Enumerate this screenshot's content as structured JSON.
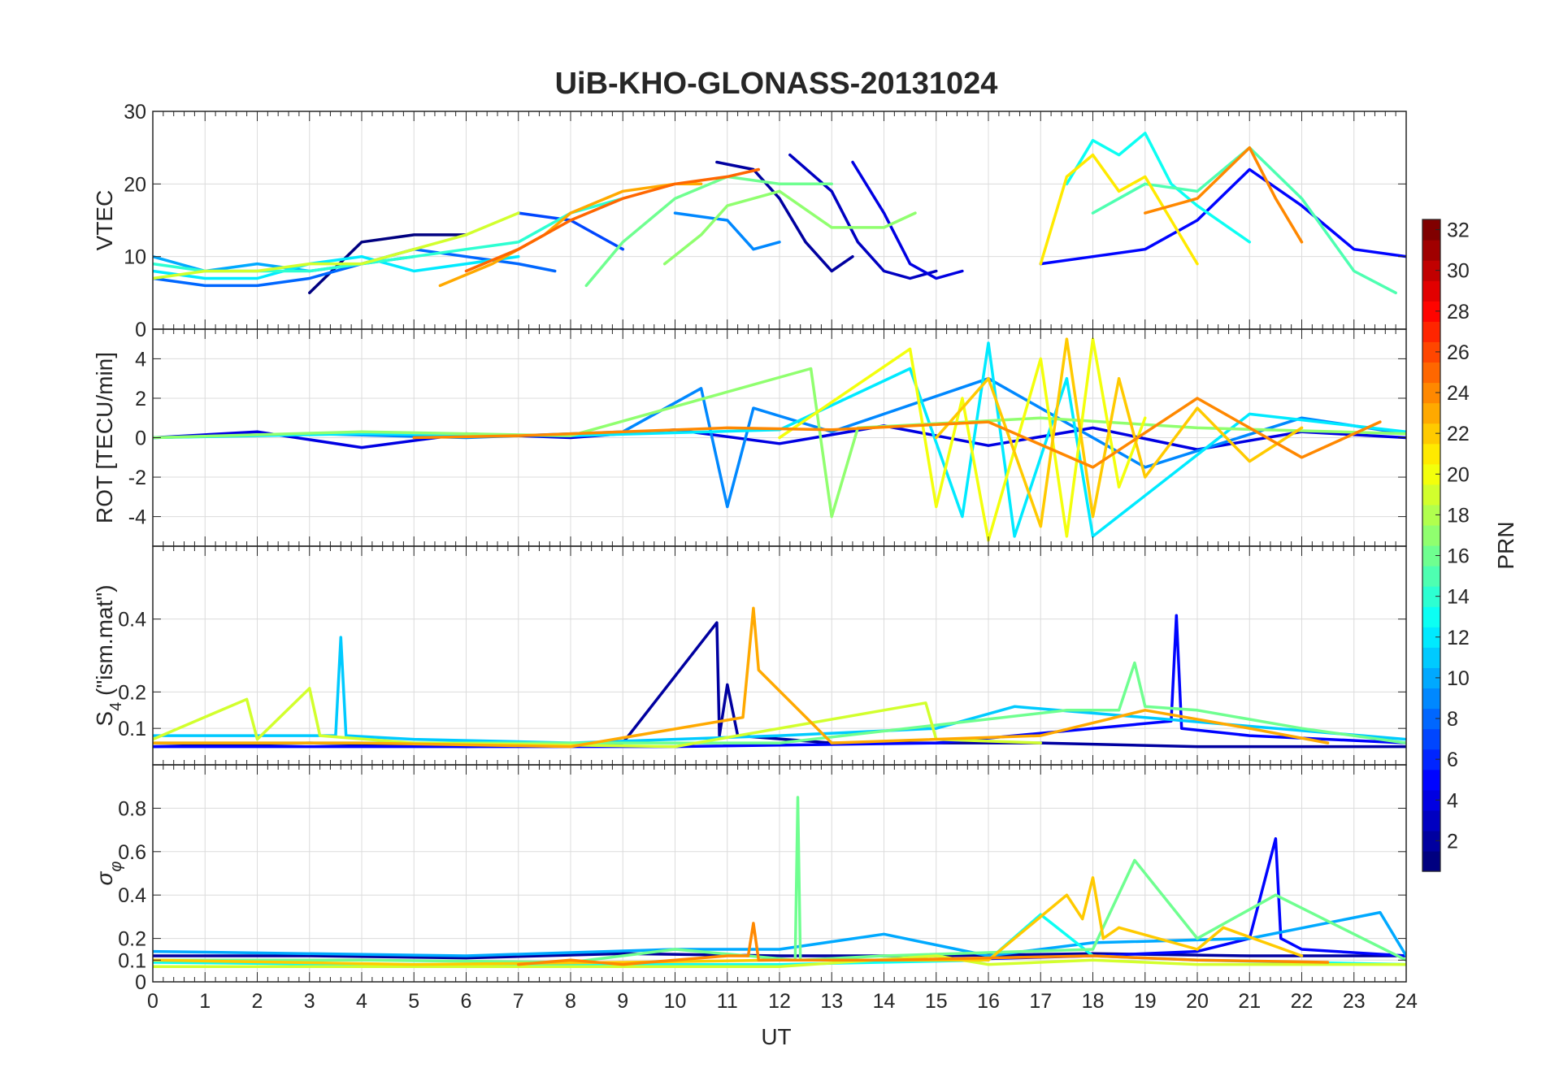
{
  "figure": {
    "title": "UiB-KHO-GLONASS-20131024",
    "xlabel": "UT"
  },
  "chart_data": [
    {
      "type": "line",
      "panel": "vtec",
      "title": "UiB-KHO-GLONASS-20131024",
      "ylabel": "VTEC",
      "ylim": [
        0,
        30
      ],
      "yticks": [
        0,
        10,
        20,
        30
      ],
      "xlim": [
        0,
        24
      ],
      "grid": true,
      "series": [
        {
          "prn": 1,
          "x": [
            3.0,
            4.0,
            5.0,
            6.0
          ],
          "y": [
            5,
            12,
            13,
            13
          ]
        },
        {
          "prn": 2,
          "x": [
            10.8,
            11.5,
            12.0,
            12.5,
            13.0,
            13.4
          ],
          "y": [
            23,
            22,
            18,
            12,
            8,
            10
          ]
        },
        {
          "prn": 3,
          "x": [
            12.2,
            13.0,
            13.5,
            14.0,
            14.5,
            15.0
          ],
          "y": [
            24,
            19,
            12,
            8,
            7,
            8
          ]
        },
        {
          "prn": 4,
          "x": [
            13.4,
            14.0,
            14.5,
            15.0,
            15.5
          ],
          "y": [
            23,
            16,
            9,
            7,
            8
          ]
        },
        {
          "prn": 5,
          "x": [
            17.0,
            18.0,
            19.0,
            20.0,
            21.0,
            22.0,
            23.0,
            24.0
          ],
          "y": [
            9,
            10,
            11,
            15,
            22,
            17,
            11,
            10
          ]
        },
        {
          "prn": 7,
          "x": [
            7.0,
            8.0,
            8.5,
            9.0
          ],
          "y": [
            16,
            15,
            13,
            11
          ]
        },
        {
          "prn": 8,
          "x": [
            0.0,
            1.0,
            2.0,
            3.0,
            4.0,
            5.0,
            6.0,
            7.0,
            7.7
          ],
          "y": [
            7,
            6,
            6,
            7,
            9,
            11,
            10,
            9,
            8
          ]
        },
        {
          "prn": 9,
          "x": [
            10.0,
            11.0,
            11.5,
            12.0
          ],
          "y": [
            16,
            15,
            11,
            12
          ]
        },
        {
          "prn": 10,
          "x": [
            0.0,
            1.0,
            2.0,
            3.0,
            4.0,
            5.0
          ],
          "y": [
            10,
            8,
            9,
            8,
            9,
            10
          ]
        },
        {
          "prn": 12,
          "x": [
            0.0,
            1.0,
            2.0,
            3.0,
            4.0,
            5.0,
            6.0,
            7.0
          ],
          "y": [
            8,
            7,
            7,
            9,
            10,
            8,
            9,
            10
          ]
        },
        {
          "prn": 13,
          "x": [
            17.5,
            18.0,
            18.5,
            19.0,
            19.5,
            20.0,
            21.0
          ],
          "y": [
            20,
            26,
            24,
            27,
            20,
            17,
            12
          ]
        },
        {
          "prn": 14,
          "x": [
            0.0,
            1.0,
            2.0,
            3.0,
            4.0,
            5.0,
            6.0,
            7.0,
            8.0,
            9.0
          ],
          "y": [
            9,
            8,
            8,
            8,
            9,
            10,
            11,
            12,
            16,
            18
          ]
        },
        {
          "prn": 15,
          "x": [
            18.0,
            19.0,
            20.0,
            21.0,
            22.0,
            23.0,
            23.8
          ],
          "y": [
            16,
            20,
            19,
            25,
            18,
            8,
            5
          ]
        },
        {
          "prn": 16,
          "x": [
            8.3,
            9.0,
            10.0,
            11.0,
            12.0,
            13.0
          ],
          "y": [
            6,
            12,
            18,
            21,
            20,
            20
          ]
        },
        {
          "prn": 17,
          "x": [
            9.8,
            10.5,
            11.0,
            12.0,
            13.0,
            14.0,
            14.6
          ],
          "y": [
            9,
            13,
            17,
            19,
            14,
            14,
            16
          ]
        },
        {
          "prn": 19,
          "x": [
            0.0,
            1.0,
            2.0,
            3.0,
            4.0,
            5.0,
            6.0,
            7.0
          ],
          "y": [
            7,
            8,
            8,
            9,
            9,
            11,
            13,
            16
          ]
        },
        {
          "prn": 21,
          "x": [
            17.0,
            17.5,
            18.0,
            18.5,
            19.0,
            19.5,
            20.0
          ],
          "y": [
            9,
            21,
            24,
            19,
            21,
            15,
            9
          ]
        },
        {
          "prn": 23,
          "x": [
            5.5,
            6.5,
            7.5,
            8.0,
            9.0,
            10.0,
            10.5
          ],
          "y": [
            6,
            9,
            13,
            16,
            19,
            20,
            20
          ]
        },
        {
          "prn": 24,
          "x": [
            19.0,
            20.0,
            21.0,
            21.5,
            22.0
          ],
          "y": [
            16,
            18,
            25,
            18,
            12
          ]
        },
        {
          "prn": 25,
          "x": [
            6.0,
            7.0,
            8.0,
            9.0,
            10.0,
            11.0,
            11.6
          ],
          "y": [
            8,
            11,
            15,
            18,
            20,
            21,
            22
          ]
        }
      ]
    },
    {
      "type": "line",
      "panel": "rot",
      "ylabel": "ROT [TECU/min]",
      "ylim": [
        -5.5,
        5.5
      ],
      "yticks": [
        -4,
        -2,
        0,
        2,
        4
      ],
      "xlim": [
        0,
        24
      ],
      "grid": true,
      "series": [
        {
          "prn": 4,
          "x": [
            0,
            2,
            4,
            6,
            8,
            10,
            12,
            14,
            16,
            18,
            20,
            22,
            24
          ],
          "y": [
            0,
            0.3,
            -0.5,
            0.2,
            0,
            0.4,
            -0.3,
            0.6,
            -0.4,
            0.5,
            -0.6,
            0.3,
            0
          ]
        },
        {
          "prn": 9,
          "x": [
            0,
            3,
            6,
            9,
            10.5,
            11,
            11.5,
            13,
            16,
            19,
            22,
            24
          ],
          "y": [
            0,
            0.2,
            0,
            0.3,
            2.5,
            -3.5,
            1.5,
            0.3,
            3.0,
            -1.5,
            1.0,
            0.2
          ]
        },
        {
          "prn": 12,
          "x": [
            0,
            4,
            8,
            12,
            14.5,
            15.5,
            16,
            16.5,
            17.5,
            18,
            21,
            24
          ],
          "y": [
            0,
            0.2,
            0.1,
            0.4,
            3.5,
            -4.0,
            4.8,
            -5.0,
            3.0,
            -5.0,
            1.2,
            0.3
          ]
        },
        {
          "prn": 17,
          "x": [
            0,
            4,
            8,
            12.6,
            13,
            13.5,
            17,
            20,
            24
          ],
          "y": [
            0,
            0.3,
            0.1,
            3.5,
            -4.0,
            0.5,
            1.0,
            0.5,
            0.2
          ]
        },
        {
          "prn": 20,
          "x": [
            12,
            14.5,
            15,
            15.5,
            16,
            17,
            17.5,
            18,
            18.5,
            19
          ],
          "y": [
            0,
            4.5,
            -3.5,
            2.0,
            -5.2,
            4.0,
            -5.0,
            5.0,
            -2.5,
            1.0
          ]
        },
        {
          "prn": 22,
          "x": [
            15,
            16,
            17,
            17.5,
            18,
            18.5,
            19,
            20,
            21,
            22
          ],
          "y": [
            0,
            3.0,
            -4.5,
            5.0,
            -4.0,
            3.0,
            -2.0,
            1.5,
            -1.2,
            0.5
          ]
        },
        {
          "prn": 24,
          "x": [
            5,
            7,
            9,
            11,
            13,
            16,
            18,
            20,
            22,
            23.5
          ],
          "y": [
            0,
            0.1,
            0.3,
            0.5,
            0.4,
            0.8,
            -1.5,
            2.0,
            -1.0,
            0.8
          ]
        }
      ]
    },
    {
      "type": "line",
      "panel": "s4",
      "ylabel": "S4 (\"ism.mat\")",
      "ylabel_main": "S",
      "ylabel_sub": "4",
      "ylabel_rest": " (\"ism.mat\")",
      "ylim": [
        0,
        0.6
      ],
      "yticks": [
        0.1,
        0.2,
        0.4
      ],
      "xlim": [
        0,
        24
      ],
      "grid": true,
      "series": [
        {
          "prn": 2,
          "x": [
            0,
            3,
            6,
            9,
            10.8,
            10.85,
            11.0,
            11.2,
            13,
            17,
            20,
            24
          ],
          "y": [
            0.05,
            0.06,
            0.05,
            0.06,
            0.39,
            0.08,
            0.22,
            0.08,
            0.06,
            0.06,
            0.05,
            0.05
          ]
        },
        {
          "prn": 5,
          "x": [
            0,
            5,
            10,
            15,
            18,
            19.5,
            19.6,
            19.7,
            21,
            24
          ],
          "y": [
            0.05,
            0.05,
            0.05,
            0.06,
            0.1,
            0.12,
            0.41,
            0.1,
            0.08,
            0.06
          ]
        },
        {
          "prn": 11,
          "x": [
            0,
            3.5,
            3.6,
            3.7,
            5,
            8,
            12,
            15,
            16.5,
            24
          ],
          "y": [
            0.08,
            0.08,
            0.35,
            0.08,
            0.07,
            0.06,
            0.08,
            0.1,
            0.16,
            0.07
          ]
        },
        {
          "prn": 16,
          "x": [
            0,
            6,
            12,
            17.5,
            18.5,
            18.8,
            19,
            20,
            22,
            24
          ],
          "y": [
            0.06,
            0.06,
            0.06,
            0.15,
            0.15,
            0.28,
            0.16,
            0.15,
            0.1,
            0.06
          ]
        },
        {
          "prn": 19,
          "x": [
            0,
            1.8,
            2.0,
            3.0,
            3.2,
            5,
            10,
            14.8,
            15,
            17
          ],
          "y": [
            0.07,
            0.18,
            0.07,
            0.21,
            0.08,
            0.06,
            0.05,
            0.17,
            0.07,
            0.06
          ]
        },
        {
          "prn": 23,
          "x": [
            0,
            4,
            8,
            11.3,
            11.5,
            11.6,
            13,
            17,
            19,
            21,
            22.5
          ],
          "y": [
            0.06,
            0.06,
            0.05,
            0.13,
            0.43,
            0.26,
            0.06,
            0.08,
            0.15,
            0.1,
            0.06
          ]
        }
      ]
    },
    {
      "type": "line",
      "panel": "sigma-phi",
      "ylabel": "σ φ",
      "ylabel_main": "σ",
      "ylabel_sub": "φ",
      "ylim": [
        0,
        1
      ],
      "yticks": [
        0,
        0.1,
        0.2,
        0.4,
        0.6,
        0.8
      ],
      "xlim": [
        0,
        24
      ],
      "xticks": [
        0,
        1,
        2,
        3,
        4,
        5,
        6,
        7,
        8,
        9,
        10,
        11,
        12,
        13,
        14,
        15,
        16,
        17,
        18,
        19,
        20,
        21,
        22,
        23,
        24
      ],
      "xlabel": "UT",
      "grid": true,
      "series": [
        {
          "prn": 2,
          "x": [
            0,
            3,
            6,
            9,
            12,
            15,
            18,
            21,
            24
          ],
          "y": [
            0.12,
            0.12,
            0.11,
            0.13,
            0.12,
            0.12,
            0.13,
            0.12,
            0.12
          ]
        },
        {
          "prn": 5,
          "x": [
            15,
            18,
            20,
            21,
            21.5,
            21.6,
            22,
            24
          ],
          "y": [
            0.1,
            0.12,
            0.14,
            0.2,
            0.66,
            0.2,
            0.15,
            0.12
          ]
        },
        {
          "prn": 10,
          "x": [
            0,
            6,
            10,
            12,
            14,
            16,
            18,
            21,
            23.5,
            24
          ],
          "y": [
            0.14,
            0.12,
            0.15,
            0.15,
            0.22,
            0.12,
            0.18,
            0.2,
            0.32,
            0.12
          ]
        },
        {
          "prn": 13,
          "x": [
            0,
            4,
            8,
            12,
            16,
            17,
            18,
            20,
            24
          ],
          "y": [
            0.09,
            0.08,
            0.08,
            0.08,
            0.1,
            0.31,
            0.12,
            0.1,
            0.08
          ]
        },
        {
          "prn": 16,
          "x": [
            0,
            4,
            8,
            10,
            12.3,
            12.35,
            12.4,
            14,
            18,
            18.8,
            20,
            21.5,
            24
          ],
          "y": [
            0.1,
            0.1,
            0.09,
            0.15,
            0.1,
            0.85,
            0.1,
            0.12,
            0.15,
            0.56,
            0.2,
            0.4,
            0.1
          ]
        },
        {
          "prn": 19,
          "x": [
            0,
            4,
            8,
            12,
            15,
            16,
            18,
            20,
            24
          ],
          "y": [
            0.07,
            0.07,
            0.07,
            0.07,
            0.12,
            0.08,
            0.1,
            0.08,
            0.08
          ]
        },
        {
          "prn": 22,
          "x": [
            0,
            5,
            9,
            12,
            16,
            17.5,
            17.8,
            18,
            18.2,
            18.5,
            20,
            20.5,
            22
          ],
          "y": [
            0.1,
            0.08,
            0.09,
            0.1,
            0.1,
            0.4,
            0.29,
            0.48,
            0.2,
            0.25,
            0.15,
            0.25,
            0.12
          ]
        },
        {
          "prn": 24,
          "x": [
            7,
            8,
            9,
            10,
            11,
            11.4,
            11.5,
            11.6,
            14,
            18,
            20,
            22.5
          ],
          "y": [
            0.08,
            0.1,
            0.08,
            0.1,
            0.12,
            0.12,
            0.27,
            0.1,
            0.1,
            0.12,
            0.1,
            0.09
          ]
        }
      ]
    },
    {
      "type": "colorbar",
      "label": "PRN",
      "colormap": "jet",
      "range": [
        1,
        32
      ],
      "ticks": [
        2,
        4,
        6,
        8,
        10,
        12,
        14,
        16,
        18,
        20,
        22,
        24,
        26,
        28,
        30,
        32
      ]
    }
  ]
}
